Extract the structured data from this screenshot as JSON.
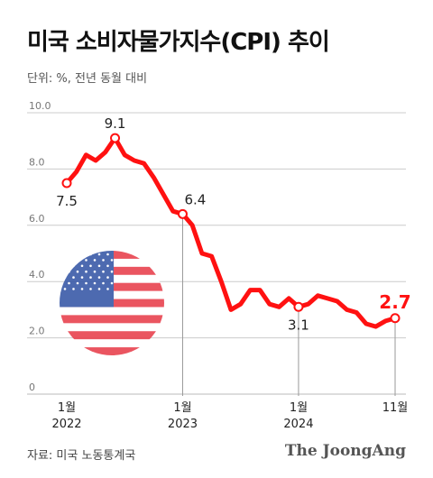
{
  "header": {
    "title": "미국 소비자물가지수(CPI) 추이",
    "unit_note": "단위: %, 전년 동월 대비"
  },
  "footer": {
    "source": "자료: 미국 노동통계국",
    "publisher": "The JoongAng"
  },
  "decoration": {
    "flag": "us-flag-circle"
  },
  "colors": {
    "line": "#ff1111",
    "highlight_label": "#ff1111",
    "grid": "#cccccc",
    "tick_text": "#777777",
    "guide": "#999999"
  },
  "chart_data": {
    "type": "line",
    "title": "미국 소비자물가지수(CPI) 추이",
    "ylabel": "단위: %, 전년 동월 대비",
    "ylim": [
      0,
      10
    ],
    "yticks": [
      "0",
      "2.0",
      "4.0",
      "6.0",
      "8.0",
      "10.0"
    ],
    "grid": true,
    "x_start": "2022-01",
    "x_end": "2024-11",
    "x_tick_labels": [
      {
        "month": "2022-01",
        "label": "1월",
        "year": "2022"
      },
      {
        "month": "2023-01",
        "label": "1월",
        "year": "2023"
      },
      {
        "month": "2024-01",
        "label": "1월",
        "year": "2024"
      },
      {
        "month": "2024-11",
        "label": "11월",
        "year": ""
      }
    ],
    "series": [
      {
        "x": [
          "2022-01",
          "2022-02",
          "2022-03",
          "2022-04",
          "2022-05",
          "2022-06",
          "2022-07",
          "2022-08",
          "2022-09",
          "2022-10",
          "2022-11",
          "2022-12",
          "2023-01",
          "2023-02",
          "2023-03",
          "2023-04",
          "2023-05",
          "2023-06",
          "2023-07",
          "2023-08",
          "2023-09",
          "2023-10",
          "2023-11",
          "2023-12",
          "2024-01",
          "2024-02",
          "2024-03",
          "2024-04",
          "2024-05",
          "2024-06",
          "2024-07",
          "2024-08",
          "2024-09",
          "2024-10",
          "2024-11"
        ],
        "values": [
          7.5,
          7.9,
          8.5,
          8.3,
          8.6,
          9.1,
          8.5,
          8.3,
          8.2,
          7.7,
          7.1,
          6.5,
          6.4,
          6.0,
          5.0,
          4.9,
          4.0,
          3.0,
          3.2,
          3.7,
          3.7,
          3.2,
          3.1,
          3.4,
          3.1,
          3.2,
          3.5,
          3.4,
          3.3,
          3.0,
          2.9,
          2.5,
          2.4,
          2.6,
          2.7
        ]
      }
    ],
    "annotations": [
      {
        "month": "2022-01",
        "value": 7.5,
        "label": "7.5",
        "position": "below",
        "guide": false,
        "highlight": false
      },
      {
        "month": "2022-06",
        "value": 9.1,
        "label": "9.1",
        "position": "above",
        "guide": false,
        "highlight": false
      },
      {
        "month": "2023-01",
        "value": 6.4,
        "label": "6.4",
        "position": "above-right",
        "guide": true,
        "highlight": false
      },
      {
        "month": "2024-01",
        "value": 3.1,
        "label": "3.1",
        "position": "below",
        "guide": true,
        "highlight": false
      },
      {
        "month": "2024-11",
        "value": 2.7,
        "label": "2.7",
        "position": "above",
        "guide": true,
        "highlight": true
      }
    ]
  }
}
